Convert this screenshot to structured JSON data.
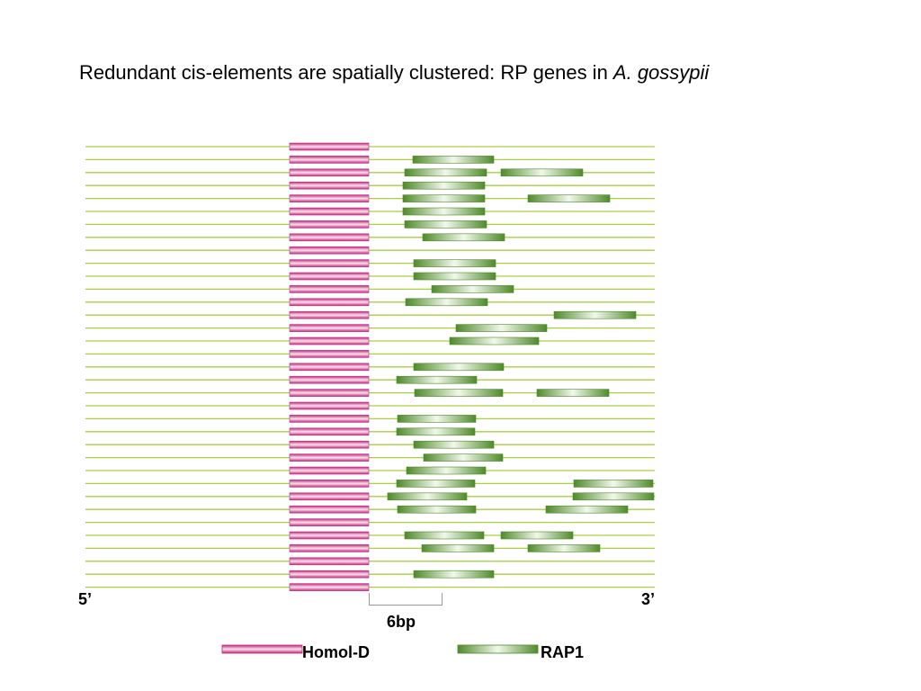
{
  "title": {
    "text": "Redundant cis-elements are spatially clustered: RP genes in ",
    "species": "A. gossypii"
  },
  "labels": {
    "five_prime": "5’",
    "three_prime": "3’",
    "scale": "6bp"
  },
  "legend": [
    {
      "label": "Homol-D",
      "kind": "homol"
    },
    {
      "label": "RAP1",
      "kind": "rap1"
    }
  ],
  "colors": {
    "line": "#a6d041",
    "homol_dark": "#c4297c",
    "homol_light": "#fbe3ef",
    "rap1_dark": "#4f8a2a",
    "rap1_light": "#f2f8ec",
    "scale_bracket": "#999999"
  },
  "rows": [
    [],
    [
      [
        459,
        549
      ]
    ],
    [
      [
        450,
        541
      ],
      [
        557,
        648
      ]
    ],
    [
      [
        448,
        539
      ]
    ],
    [
      [
        448,
        539
      ],
      [
        587,
        678
      ]
    ],
    [
      [
        448,
        539
      ]
    ],
    [
      [
        450,
        541
      ]
    ],
    [
      [
        470,
        561
      ]
    ],
    [],
    [
      [
        460,
        551
      ]
    ],
    [
      [
        460,
        551
      ]
    ],
    [
      [
        480,
        571
      ]
    ],
    [
      [
        451,
        542
      ]
    ],
    [
      [
        616,
        707
      ]
    ],
    [
      [
        507,
        608
      ]
    ],
    [
      [
        500,
        599
      ]
    ],
    [],
    [
      [
        460,
        560
      ]
    ],
    [
      [
        441,
        530
      ]
    ],
    [
      [
        461,
        559
      ],
      [
        597,
        677
      ]
    ],
    [],
    [
      [
        442,
        529
      ]
    ],
    [
      [
        441,
        528
      ]
    ],
    [
      [
        460,
        549
      ]
    ],
    [
      [
        471,
        559
      ]
    ],
    [
      [
        452,
        540
      ]
    ],
    [
      [
        441,
        528
      ],
      [
        638,
        726
      ]
    ],
    [
      [
        431,
        519
      ],
      [
        637,
        727
      ]
    ],
    [
      [
        442,
        529
      ],
      [
        607,
        698
      ]
    ],
    [],
    [
      [
        450,
        538
      ],
      [
        557,
        637
      ]
    ],
    [
      [
        469,
        549
      ],
      [
        587,
        667
      ]
    ],
    [],
    [
      [
        460,
        549
      ]
    ],
    []
  ]
}
